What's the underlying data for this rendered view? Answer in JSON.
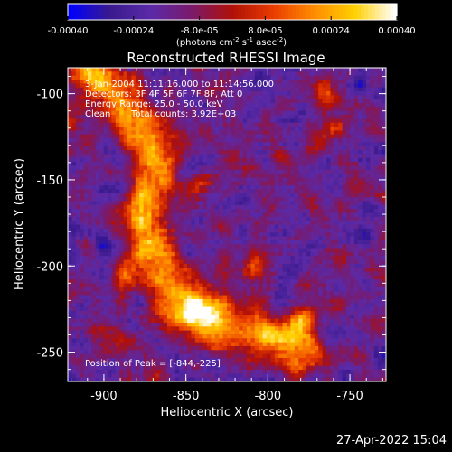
{
  "colorbar": {
    "tick_labels": [
      "-0.00040",
      "-0.00024",
      "-8.0e-05",
      "8.0e-05",
      "0.00024",
      "0.00040"
    ],
    "tick_values": [
      -0.0004,
      -0.00024,
      -8e-05,
      8e-05,
      0.00024,
      0.0004
    ],
    "range": [
      -0.0004,
      0.0004
    ],
    "unit_base": "(photons cm",
    "unit_exp1": "-2",
    "unit_mid": " s",
    "unit_exp2": "-1",
    "unit_end": " asec",
    "unit_exp3": "-2",
    "unit_close": ")"
  },
  "chart_data": {
    "type": "heatmap",
    "title": "Reconstructed RHESSI Image",
    "xlabel": "Heliocentric X (arcsec)",
    "ylabel": "Heliocentric Y (arcsec)",
    "xlim": [
      -922,
      -728
    ],
    "ylim": [
      -267,
      -85
    ],
    "x_ticks": [
      -900,
      -850,
      -800,
      -750
    ],
    "y_ticks": [
      -250,
      -200,
      -150,
      -100
    ],
    "x_tick_labels": [
      "-900",
      "-850",
      "-800",
      "-750"
    ],
    "y_tick_labels": [
      "-250",
      "-200",
      "-150",
      "-100"
    ],
    "peak": {
      "x": -844,
      "y": -225
    },
    "ridge_points": [
      [
        -906,
        -90
      ],
      [
        -896,
        -100
      ],
      [
        -884,
        -112
      ],
      [
        -872,
        -130
      ],
      [
        -870,
        -150
      ],
      [
        -876,
        -172
      ],
      [
        -872,
        -192
      ],
      [
        -858,
        -212
      ],
      [
        -844,
        -225
      ],
      [
        -828,
        -232
      ],
      [
        -812,
        -238
      ],
      [
        -796,
        -242
      ],
      [
        -782,
        -248
      ]
    ],
    "secondary_sources": [
      [
        -770,
        -100
      ],
      [
        -760,
        -120
      ],
      [
        -840,
        -150
      ],
      [
        -810,
        -200
      ],
      [
        -780,
        -230
      ],
      [
        -900,
        -240
      ],
      [
        -888,
        -205
      ]
    ],
    "colorscale": [
      "#0000ff",
      "#3a1a8c",
      "#5a2aa8",
      "#7a1a6a",
      "#b01008",
      "#e83c00",
      "#ff8c00",
      "#ffd000",
      "#ffffff"
    ],
    "annotations": {
      "time_range": "3-Jan-2004 11:11:16.000 to 11:14:56.000",
      "detectors": "Detectors: 3F 4F 5F 6F 7F 8F, Att 0",
      "energy_range": "Energy Range: 25.0 - 50.0 keV",
      "method": "Clean",
      "total_counts": "Total counts: 3.92E+03",
      "peak_label": "Position of Peak = [-844,-225]"
    }
  },
  "footer": {
    "timestamp": "27-Apr-2022 15:04"
  }
}
